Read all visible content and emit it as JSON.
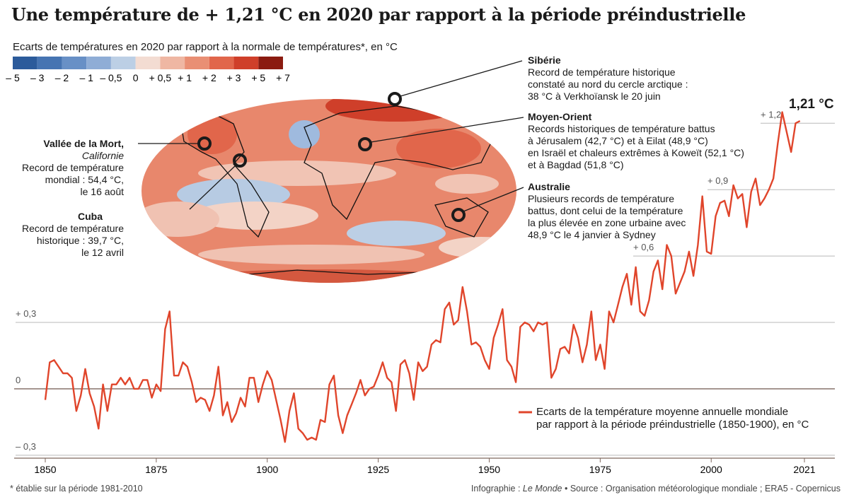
{
  "chart_data": {
    "type": "line",
    "title": "Une température de + 1,21 °C en 2020 par rapport à la période préindustrielle",
    "subtitle": "Ecarts de températures en 2020 par rapport à la normale de températures*, en °C",
    "colorscale": {
      "ticks": [
        {
          "value": -5,
          "label": "– 5"
        },
        {
          "value": -3,
          "label": "– 3"
        },
        {
          "value": -2,
          "label": "– 2"
        },
        {
          "value": -1,
          "label": "– 1"
        },
        {
          "value": -0.5,
          "label": "– 0,5"
        },
        0,
        {
          "value": 0.5,
          "label": "+ 0,5"
        },
        {
          "value": 1,
          "label": "+ 1"
        },
        {
          "value": 2,
          "label": "+ 2"
        },
        {
          "value": 3,
          "label": "+ 3"
        },
        {
          "value": 5,
          "label": "+ 5"
        },
        {
          "value": 7,
          "label": "+ 7"
        }
      ],
      "colors": [
        "#2c5b9b",
        "#4674b2",
        "#6890c6",
        "#8fadd6",
        "#bccfe5",
        "#f3dcd2",
        "#efb7a3",
        "#e98f74",
        "#e1664b",
        "#cf3f2a",
        "#8b1b10"
      ]
    },
    "annotations": [
      {
        "title": "Sibérie",
        "text": "Record de température historique\nconstaté au nord du cercle arctique :\n38 °C à Verkhoïansk le 20 juin"
      },
      {
        "title": "Moyen-Orient",
        "text": "Records historiques de température battus\nà Jérusalem (42,7 °C) et à Eilat (48,9 °C)\nen Israël et chaleurs extrêmes à Koweït (52,1 °C)\net à Bagdad (51,8 °C)"
      },
      {
        "title": "Australie",
        "text": "Plusieurs records de température\nbattus, dont celui de la température\nla plus élevée en zone urbaine avec\n48,9 °C le 4 janvier à Sydney"
      },
      {
        "title": "Vallée de la Mort,",
        "subtitle": "Californie",
        "text": "Record de température\nmondial : 54,4 °C,\nle 16 août"
      },
      {
        "title": "Cuba",
        "text": "Record de température\nhistorique : 39,7 °C,\nle 12 avril"
      }
    ],
    "end_label": "1,21 °C",
    "xlim": [
      1850,
      2021
    ],
    "xticks": [
      1850,
      1875,
      1900,
      1925,
      1950,
      1975,
      2000,
      2021
    ],
    "ylim": [
      -0.31,
      1.45
    ],
    "yticks": [
      {
        "value": -0.3,
        "label": "– 0,3"
      },
      0,
      {
        "value": 0.3,
        "label": "+ 0,3"
      },
      {
        "value": 0.6,
        "label": "+ 0,6"
      },
      {
        "value": 0.9,
        "label": "+ 0,9"
      },
      {
        "value": 1.2,
        "label": "+ 1,2"
      }
    ],
    "x": [
      1850,
      1851,
      1852,
      1853,
      1854,
      1855,
      1856,
      1857,
      1858,
      1859,
      1860,
      1861,
      1862,
      1863,
      1864,
      1865,
      1866,
      1867,
      1868,
      1869,
      1870,
      1871,
      1872,
      1873,
      1874,
      1875,
      1876,
      1877,
      1878,
      1879,
      1880,
      1881,
      1882,
      1883,
      1884,
      1885,
      1886,
      1887,
      1888,
      1889,
      1890,
      1891,
      1892,
      1893,
      1894,
      1895,
      1896,
      1897,
      1898,
      1899,
      1900,
      1901,
      1902,
      1903,
      1904,
      1905,
      1906,
      1907,
      1908,
      1909,
      1910,
      1911,
      1912,
      1913,
      1914,
      1915,
      1916,
      1917,
      1918,
      1919,
      1920,
      1921,
      1922,
      1923,
      1924,
      1925,
      1926,
      1927,
      1928,
      1929,
      1930,
      1931,
      1932,
      1933,
      1934,
      1935,
      1936,
      1937,
      1938,
      1939,
      1940,
      1941,
      1942,
      1943,
      1944,
      1945,
      1946,
      1947,
      1948,
      1949,
      1950,
      1951,
      1952,
      1953,
      1954,
      1955,
      1956,
      1957,
      1958,
      1959,
      1960,
      1961,
      1962,
      1963,
      1964,
      1965,
      1966,
      1967,
      1968,
      1969,
      1970,
      1971,
      1972,
      1973,
      1974,
      1975,
      1976,
      1977,
      1978,
      1979,
      1980,
      1981,
      1982,
      1983,
      1984,
      1985,
      1986,
      1987,
      1988,
      1989,
      1990,
      1991,
      1992,
      1993,
      1994,
      1995,
      1996,
      1997,
      1998,
      1999,
      2000,
      2001,
      2002,
      2003,
      2004,
      2005,
      2006,
      2007,
      2008,
      2009,
      2010,
      2011,
      2012,
      2013,
      2014,
      2015,
      2016,
      2017,
      2018,
      2019,
      2020
    ],
    "series": [
      {
        "name": "Ecarts de la température moyenne annuelle mondiale\npar rapport à la période préindustrielle (1850-1900), en °C",
        "color": "#e0452b",
        "values": [
          -0.05,
          0.12,
          0.13,
          0.1,
          0.07,
          0.07,
          0.05,
          -0.1,
          -0.03,
          0.09,
          -0.02,
          -0.08,
          -0.18,
          0.02,
          -0.1,
          0.02,
          0.02,
          0.05,
          0.02,
          0.05,
          0.0,
          0.0,
          0.04,
          0.04,
          -0.04,
          0.02,
          -0.01,
          0.27,
          0.35,
          0.06,
          0.06,
          0.12,
          0.1,
          0.03,
          -0.06,
          -0.04,
          -0.05,
          -0.1,
          -0.03,
          0.1,
          -0.12,
          -0.06,
          -0.15,
          -0.11,
          -0.04,
          -0.08,
          0.05,
          0.05,
          -0.06,
          0.02,
          0.08,
          0.04,
          -0.05,
          -0.14,
          -0.24,
          -0.1,
          -0.02,
          -0.18,
          -0.2,
          -0.23,
          -0.22,
          -0.23,
          -0.14,
          -0.15,
          0.02,
          0.06,
          -0.12,
          -0.2,
          -0.12,
          -0.07,
          -0.02,
          0.04,
          -0.03,
          0.0,
          0.01,
          0.06,
          0.12,
          0.05,
          0.03,
          -0.1,
          0.11,
          0.13,
          0.07,
          -0.05,
          0.12,
          0.08,
          0.1,
          0.2,
          0.22,
          0.21,
          0.36,
          0.39,
          0.29,
          0.31,
          0.46,
          0.35,
          0.2,
          0.21,
          0.19,
          0.13,
          0.09,
          0.23,
          0.29,
          0.36,
          0.13,
          0.1,
          0.03,
          0.28,
          0.3,
          0.29,
          0.26,
          0.3,
          0.29,
          0.3,
          0.05,
          0.09,
          0.18,
          0.19,
          0.16,
          0.29,
          0.23,
          0.12,
          0.2,
          0.35,
          0.13,
          0.2,
          0.09,
          0.35,
          0.3,
          0.38,
          0.46,
          0.52,
          0.38,
          0.55,
          0.35,
          0.33,
          0.4,
          0.53,
          0.58,
          0.45,
          0.65,
          0.6,
          0.43,
          0.48,
          0.53,
          0.62,
          0.51,
          0.65,
          0.87,
          0.62,
          0.61,
          0.78,
          0.84,
          0.85,
          0.78,
          0.92,
          0.86,
          0.88,
          0.73,
          0.89,
          0.95,
          0.83,
          0.86,
          0.9,
          0.95,
          1.11,
          1.25,
          1.16,
          1.07,
          1.2,
          1.21
        ]
      }
    ],
    "grid": true,
    "legend_position": "lower right",
    "footer": {
      "note": "* établie sur la période 1981-2010",
      "credit": "Infographie :",
      "credit_name": "Le Monde",
      "source": "• Source : Organisation météorologique mondiale ; ERA5 - Copernicus"
    }
  }
}
